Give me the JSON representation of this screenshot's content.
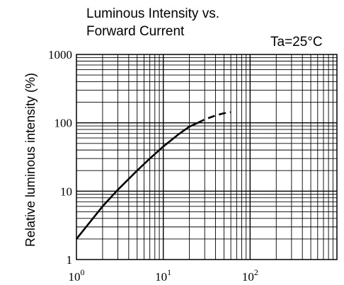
{
  "chart_data": {
    "type": "line",
    "title_line1": "Luminous Intensity vs.",
    "title_line2": "Forward Current",
    "annotation": "Ta=25°C",
    "xlabel": "",
    "ylabel": "Relative luminous intensity  (%)",
    "x_scale": "log",
    "y_scale": "log",
    "xlim": [
      1,
      1000
    ],
    "ylim": [
      1,
      1000
    ],
    "grid": true,
    "x_ticks": [
      {
        "value": 1,
        "base": "10",
        "exp": "0"
      },
      {
        "value": 10,
        "base": "10",
        "exp": "1"
      },
      {
        "value": 100,
        "base": "10",
        "exp": "2"
      }
    ],
    "y_ticks": [
      {
        "value": 1,
        "label": "1"
      },
      {
        "value": 10,
        "label": "10"
      },
      {
        "value": 100,
        "label": "100"
      },
      {
        "value": 1000,
        "label": "1000"
      }
    ],
    "series": [
      {
        "style": "solid",
        "color": "#000000",
        "x": [
          1,
          1.5,
          2,
          3,
          5,
          7,
          10,
          15,
          20,
          25
        ],
        "y": [
          2,
          3.8,
          6,
          10.5,
          20,
          30,
          45,
          68,
          88,
          100
        ]
      },
      {
        "style": "dashed",
        "color": "#000000",
        "x": [
          25,
          30,
          40,
          50,
          60
        ],
        "y": [
          100,
          112,
          128,
          138,
          143
        ]
      }
    ]
  }
}
